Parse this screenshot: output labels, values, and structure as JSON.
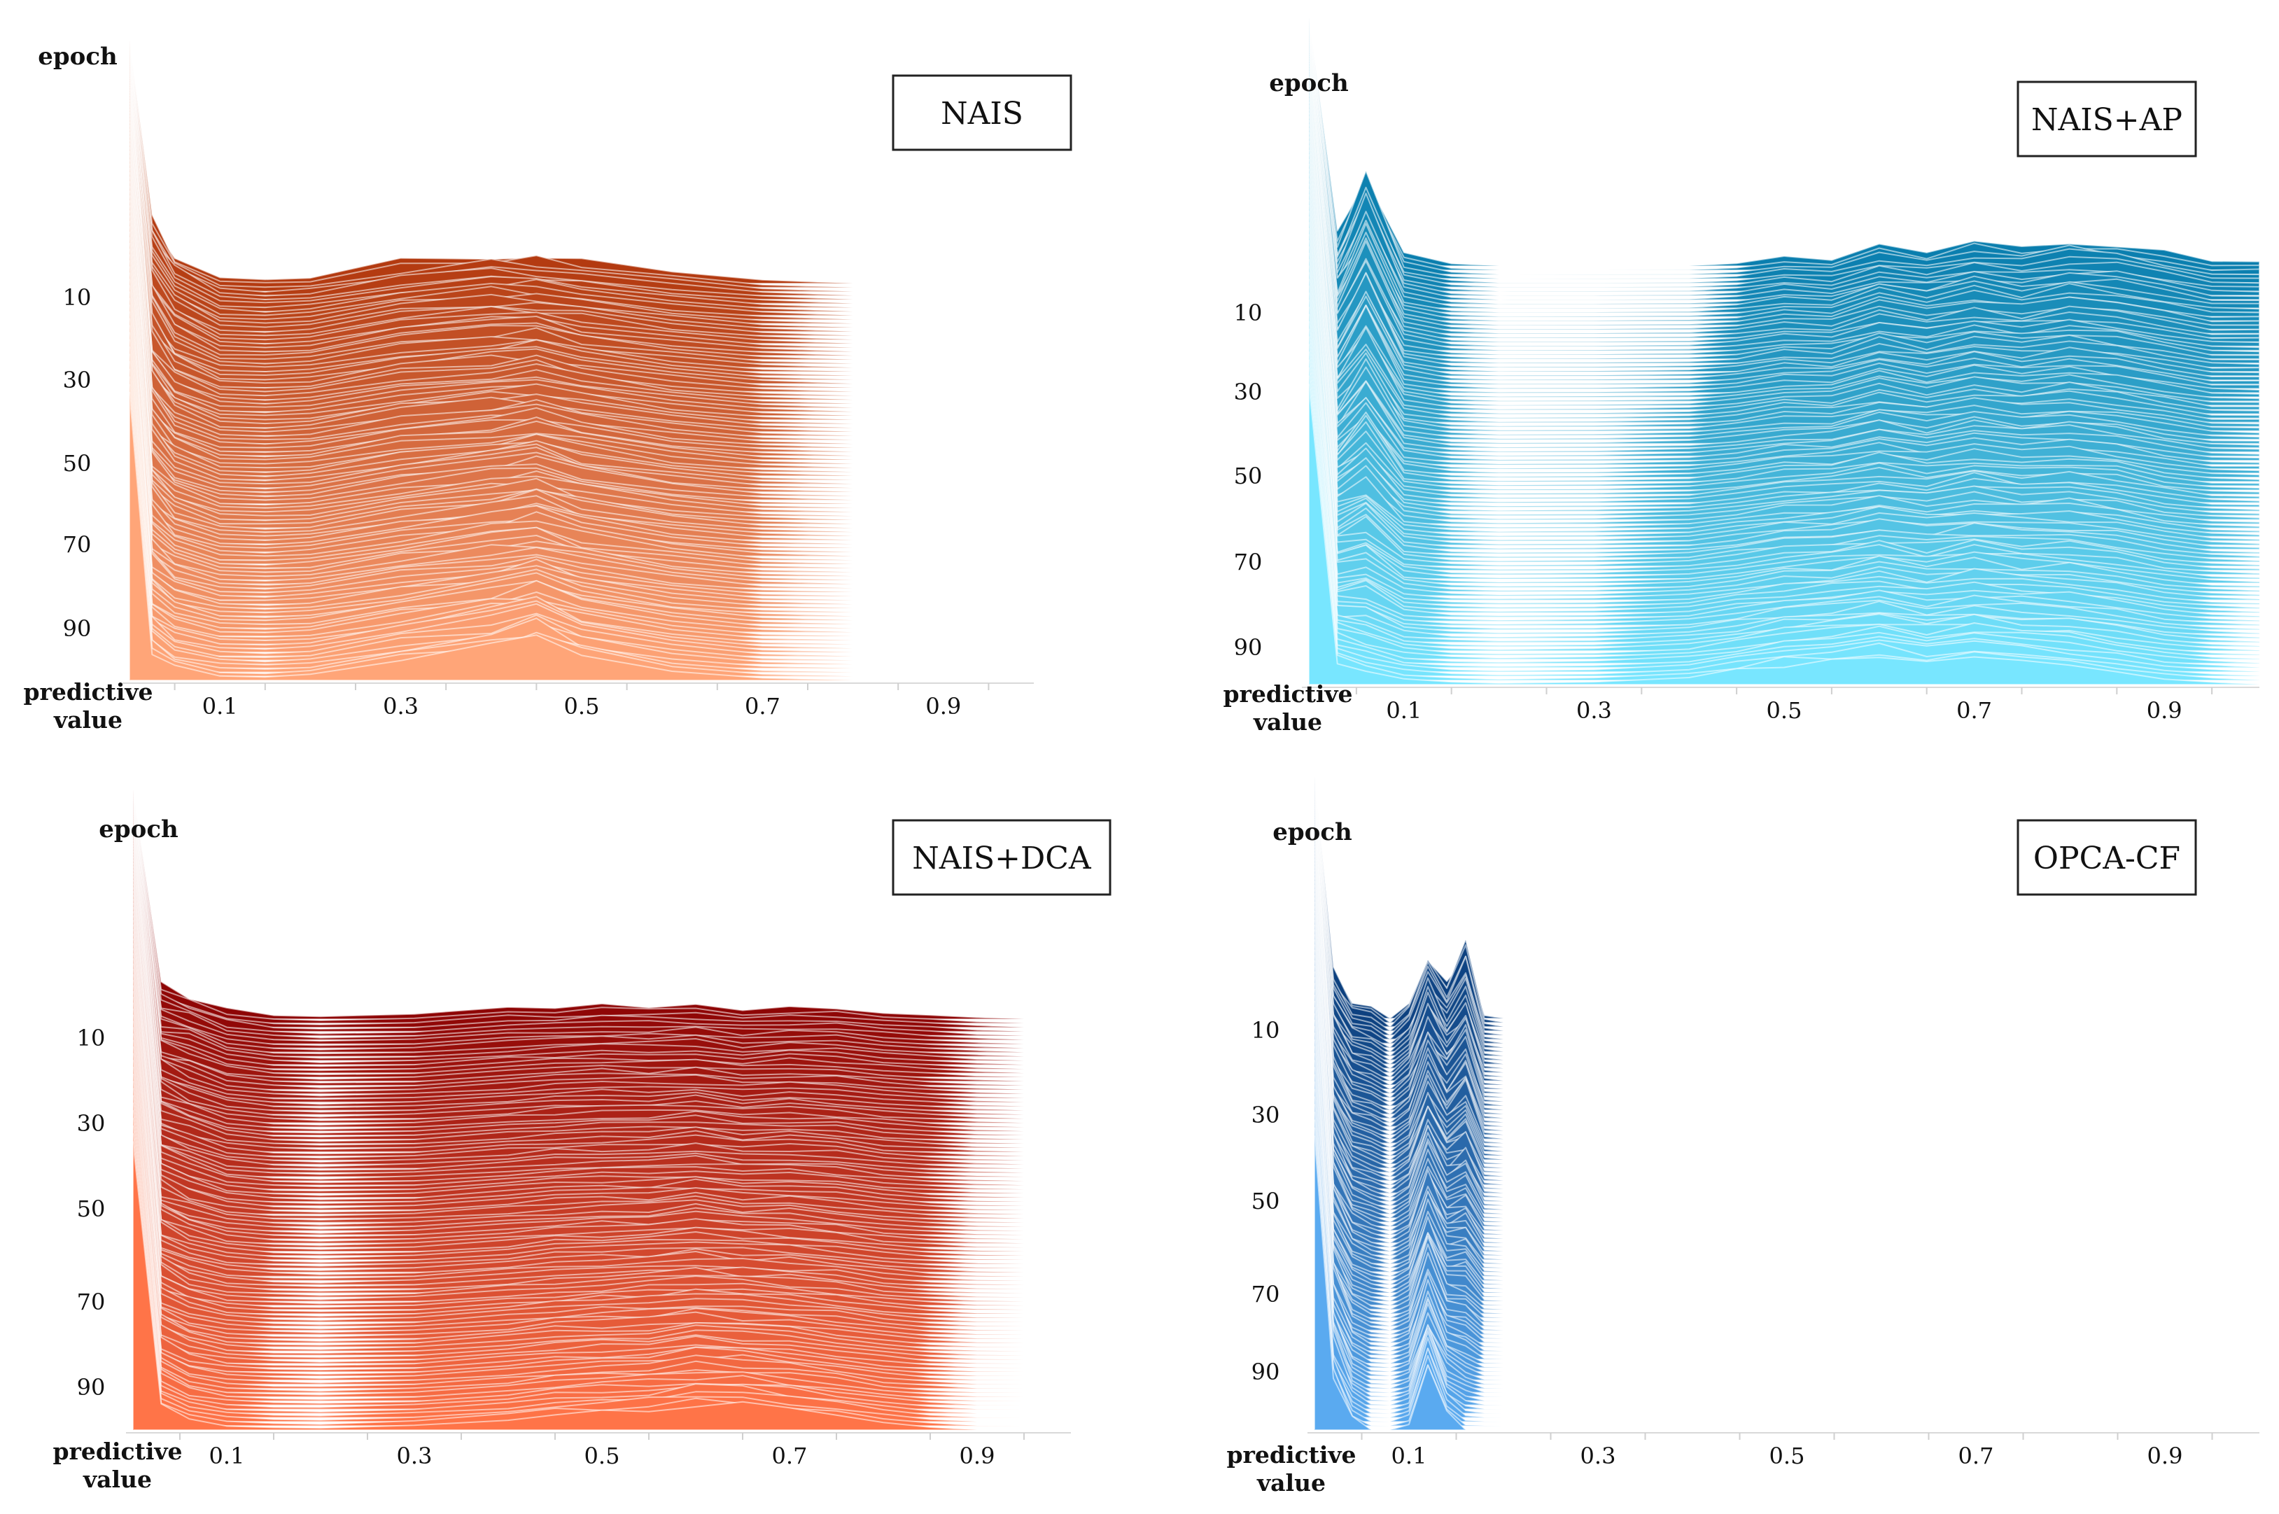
{
  "figure": {
    "axis_label_epoch": "epoch",
    "axis_label_pred_line1": "predictive",
    "axis_label_pred_line2": "value"
  },
  "chart_data": [
    {
      "type": "area",
      "subtype": "ridgeline",
      "title": "NAIS",
      "xlabel": "predictive value",
      "ylabel": "epoch",
      "xlim": [
        0,
        1
      ],
      "x_ticks": [
        "0.1",
        "0.3",
        "0.5",
        "0.7",
        "0.9"
      ],
      "x_tick_values": [
        0.1,
        0.3,
        0.5,
        0.7,
        0.9
      ],
      "y_ticks": [
        "10",
        "30",
        "50",
        "70",
        "90"
      ],
      "y_tick_values": [
        10,
        30,
        50,
        70,
        90
      ],
      "epochs": 100,
      "x": [
        0.0,
        0.025,
        0.05,
        0.1,
        0.15,
        0.2,
        0.3,
        0.4,
        0.45,
        0.5,
        0.6,
        0.7,
        0.8,
        0.9,
        1.0
      ],
      "envelope_top": [
        1.0,
        0.62,
        0.28,
        0.06,
        0.04,
        0.06,
        0.2,
        0.26,
        0.25,
        0.2,
        0.1,
        0.03,
        0.0,
        0.0,
        0.0
      ],
      "envelope_bottom": [
        0.5,
        0.26,
        0.12,
        0.04,
        0.03,
        0.05,
        0.18,
        0.3,
        0.4,
        0.24,
        0.1,
        0.02,
        0.0,
        0.0,
        0.0
      ],
      "colors": [
        "#b33a10",
        "#ffa578"
      ]
    },
    {
      "type": "area",
      "subtype": "ridgeline",
      "title": "NAIS+AP",
      "xlabel": "predictive value",
      "ylabel": "epoch",
      "xlim": [
        0,
        1
      ],
      "x_ticks": [
        "0.1",
        "0.3",
        "0.5",
        "0.7",
        "0.9"
      ],
      "x_tick_values": [
        0.1,
        0.3,
        0.5,
        0.7,
        0.9
      ],
      "y_ticks": [
        "10",
        "30",
        "50",
        "70",
        "90"
      ],
      "y_tick_values": [
        10,
        30,
        50,
        70,
        90
      ],
      "epochs": 100,
      "x": [
        0.0,
        0.03,
        0.06,
        0.1,
        0.15,
        0.2,
        0.3,
        0.4,
        0.45,
        0.5,
        0.55,
        0.6,
        0.65,
        0.7,
        0.75,
        0.8,
        0.85,
        0.9,
        0.95,
        1.0
      ],
      "envelope_top": [
        1.0,
        0.3,
        0.9,
        0.1,
        0.02,
        0.0,
        0.0,
        0.0,
        0.02,
        0.08,
        0.05,
        0.18,
        0.12,
        0.2,
        0.15,
        0.22,
        0.2,
        0.12,
        0.04,
        0.04
      ],
      "envelope_bottom": [
        0.45,
        0.2,
        0.1,
        0.05,
        0.02,
        0.01,
        0.02,
        0.06,
        0.12,
        0.18,
        0.22,
        0.25,
        0.2,
        0.24,
        0.2,
        0.18,
        0.12,
        0.05,
        0.02,
        0.0
      ],
      "colors": [
        "#0a7eae",
        "#78e6ff"
      ]
    },
    {
      "type": "area",
      "subtype": "ridgeline",
      "title": "NAIS+DCA",
      "xlabel": "predictive value",
      "ylabel": "epoch",
      "xlim": [
        0,
        1
      ],
      "x_ticks": [
        "0.1",
        "0.3",
        "0.5",
        "0.7",
        "0.9"
      ],
      "x_tick_values": [
        0.1,
        0.3,
        0.5,
        0.7,
        0.9
      ],
      "y_ticks": [
        "10",
        "30",
        "50",
        "70",
        "90"
      ],
      "y_tick_values": [
        10,
        30,
        50,
        70,
        90
      ],
      "epochs": 100,
      "x": [
        0.0,
        0.03,
        0.06,
        0.1,
        0.15,
        0.2,
        0.3,
        0.4,
        0.45,
        0.5,
        0.55,
        0.6,
        0.65,
        0.7,
        0.75,
        0.8,
        0.85,
        0.9,
        0.95,
        1.0
      ],
      "envelope_top": [
        1.0,
        0.4,
        0.28,
        0.12,
        0.05,
        0.03,
        0.05,
        0.12,
        0.14,
        0.16,
        0.15,
        0.16,
        0.1,
        0.14,
        0.13,
        0.08,
        0.05,
        0.02,
        0.0,
        0.0
      ],
      "envelope_bottom": [
        0.6,
        0.28,
        0.12,
        0.05,
        0.03,
        0.02,
        0.05,
        0.12,
        0.18,
        0.2,
        0.24,
        0.3,
        0.28,
        0.22,
        0.16,
        0.08,
        0.03,
        0.0,
        0.0,
        0.0
      ],
      "colors": [
        "#8e0505",
        "#ff7448"
      ]
    },
    {
      "type": "area",
      "subtype": "ridgeline",
      "title": "OPCA-CF",
      "xlabel": "predictive value",
      "ylabel": "epoch",
      "xlim": [
        0,
        1
      ],
      "x_ticks": [
        "0.1",
        "0.3",
        "0.5",
        "0.7",
        "0.9"
      ],
      "x_tick_values": [
        0.1,
        0.3,
        0.5,
        0.7,
        0.9
      ],
      "y_ticks": [
        "10",
        "30",
        "50",
        "70",
        "90"
      ],
      "y_tick_values": [
        10,
        30,
        50,
        70,
        90
      ],
      "epochs": 100,
      "x": [
        0.0,
        0.02,
        0.04,
        0.06,
        0.08,
        0.1,
        0.12,
        0.14,
        0.16,
        0.18,
        0.2,
        0.3,
        1.0
      ],
      "envelope_top": [
        0.05,
        0.8,
        0.3,
        0.22,
        0.0,
        0.3,
        1.05,
        0.6,
        1.2,
        0.05,
        0.0,
        0.0,
        0.0
      ],
      "envelope_bottom": [
        0.05,
        0.95,
        0.2,
        0.0,
        0.0,
        0.1,
        1.1,
        0.3,
        0.0,
        0.0,
        0.0,
        0.0,
        0.0
      ],
      "colors": [
        "#0b3f7e",
        "#5aaaf0"
      ]
    }
  ]
}
